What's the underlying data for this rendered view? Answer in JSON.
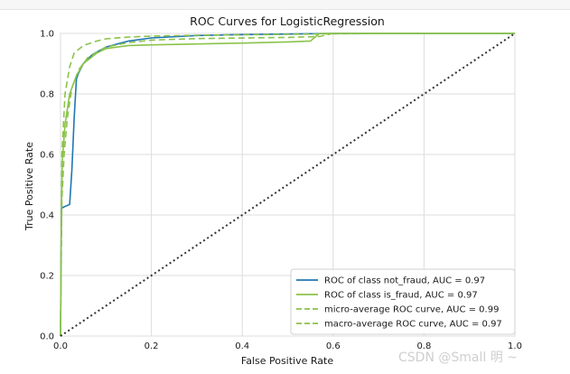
{
  "chart_data": {
    "type": "line",
    "title": "ROC Curves for LogisticRegression",
    "xlabel": "False Positive Rate",
    "ylabel": "True Positive Rate",
    "xlim": [
      0,
      1
    ],
    "ylim": [
      0,
      1
    ],
    "xticks": [
      "0.0",
      "0.2",
      "0.4",
      "0.6",
      "0.8",
      "1.0"
    ],
    "yticks": [
      "0.0",
      "0.2",
      "0.4",
      "0.6",
      "0.8",
      "1.0"
    ],
    "grid": true,
    "legend_position": "bottom-right",
    "series": [
      {
        "name": "ROC of class not_fraud, AUC = 0.97",
        "color": "#1f77b4",
        "style": "solid",
        "x": [
          0,
          0.002,
          0.005,
          0.02,
          0.025,
          0.03,
          0.035,
          0.04,
          0.05,
          0.07,
          0.1,
          0.15,
          0.2,
          0.3,
          0.4,
          0.5,
          0.6,
          0.8,
          1.0
        ],
        "y": [
          0,
          0.42,
          0.425,
          0.435,
          0.55,
          0.72,
          0.85,
          0.87,
          0.9,
          0.93,
          0.955,
          0.975,
          0.985,
          0.993,
          0.996,
          0.998,
          1.0,
          1.0,
          1.0
        ]
      },
      {
        "name": "ROC of class is_fraud, AUC = 0.97",
        "color": "#8bc34a",
        "style": "solid",
        "x": [
          0,
          0.002,
          0.004,
          0.01,
          0.02,
          0.035,
          0.05,
          0.08,
          0.1,
          0.15,
          0.2,
          0.3,
          0.4,
          0.5,
          0.55,
          0.57,
          0.6,
          0.8,
          1.0
        ],
        "y": [
          0,
          0.42,
          0.58,
          0.7,
          0.8,
          0.86,
          0.9,
          0.935,
          0.95,
          0.96,
          0.962,
          0.965,
          0.968,
          0.972,
          0.975,
          1.0,
          1.0,
          1.0,
          1.0
        ]
      },
      {
        "name": "micro-average ROC curve, AUC = 0.99",
        "color": "#8bc34a",
        "style": "dashed",
        "x": [
          0,
          0.003,
          0.01,
          0.02,
          0.03,
          0.05,
          0.08,
          0.1,
          0.15,
          0.2,
          0.3,
          0.5,
          0.7,
          1.0
        ],
        "y": [
          0,
          0.6,
          0.8,
          0.89,
          0.935,
          0.96,
          0.975,
          0.982,
          0.988,
          0.991,
          0.994,
          0.997,
          1.0,
          1.0
        ]
      },
      {
        "name": "macro-average ROC curve, AUC = 0.97",
        "color": "#8bc34a",
        "style": "dashed",
        "x": [
          0,
          0.003,
          0.008,
          0.015,
          0.025,
          0.04,
          0.06,
          0.1,
          0.15,
          0.2,
          0.3,
          0.5,
          0.57,
          0.6,
          1.0
        ],
        "y": [
          0,
          0.45,
          0.6,
          0.72,
          0.82,
          0.88,
          0.92,
          0.955,
          0.97,
          0.978,
          0.983,
          0.987,
          0.99,
          1.0,
          1.0
        ]
      },
      {
        "name": "",
        "color": "#333333",
        "style": "dotted",
        "x": [
          0,
          1
        ],
        "y": [
          0,
          1
        ]
      }
    ]
  },
  "watermark": "CSDN @Small  明  ~"
}
